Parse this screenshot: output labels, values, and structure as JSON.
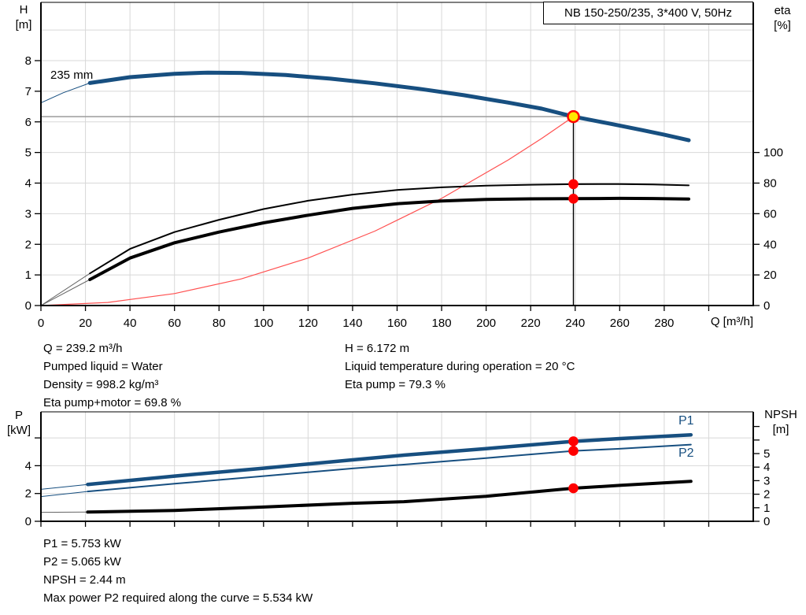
{
  "title_box": {
    "label": "NB 150-250/235, 3*400 V, 50Hz"
  },
  "colors": {
    "blue": "#174F80",
    "red": "#FF0000",
    "red_curve": "#FF5050",
    "yellow": "#FFE600",
    "black": "#000000",
    "gray_line": "#9B9B9B",
    "lead_gray": "#666666",
    "grid": "#D8D8D8"
  },
  "top_chart_labels": {
    "y_left": [
      "H",
      "[m]"
    ],
    "y_right": [
      "eta",
      "[%]"
    ],
    "x": "Q [m³/h]",
    "impeller": "235 mm"
  },
  "bottom_chart_labels": {
    "y_left": [
      "P",
      "[kW]"
    ],
    "y_right": [
      "NPSH",
      "[m]"
    ],
    "p1": "P1",
    "p2": "P2"
  },
  "info_top": {
    "left": [
      "Q = 239.2 m³/h",
      "Pumped liquid = Water",
      "Density = 998.2 kg/m³",
      "Eta pump+motor = 69.8 %"
    ],
    "right": [
      "H = 6.172 m",
      "Liquid temperature during operation = 20 °C",
      "Eta pump = 79.3 %"
    ]
  },
  "info_bottom": [
    "P1 = 5.753 kW",
    "P2 = 5.065 kW",
    "NPSH = 2.44 m",
    "Max power P2 required along the curve = 5.534 kW"
  ],
  "chart_data": [
    {
      "type": "line",
      "title": "NB 150-250/235, 3*400 V, 50Hz",
      "xlabel": "Q [m³/h]",
      "ylabel_left": "H [m]",
      "ylabel_right": "eta [%]",
      "xlim": [
        0,
        320
      ],
      "x_ticks": [
        0,
        20,
        40,
        60,
        80,
        100,
        120,
        140,
        160,
        180,
        200,
        220,
        240,
        260,
        280
      ],
      "y_left_ticks": [
        0,
        1,
        2,
        3,
        4,
        5,
        6,
        7,
        8
      ],
      "y_right_ticks": [
        0,
        20,
        40,
        60,
        80,
        100
      ],
      "grid": true,
      "duty_point": {
        "q": 239.2,
        "h": 6.172,
        "marker": "yellow",
        "drop_line": true,
        "level_line": true
      },
      "markers": [
        {
          "q": 239.2,
          "value": 79.3,
          "axis": "right"
        },
        {
          "q": 239.2,
          "value": 69.8,
          "axis": "right"
        }
      ],
      "series": [
        {
          "id": "system-curve",
          "name": "System curve",
          "color": "red_curve",
          "width": 1.2,
          "axis": "left",
          "points": [
            [
              0,
              0
            ],
            [
              30,
              0.1
            ],
            [
              60,
              0.39
            ],
            [
              90,
              0.87
            ],
            [
              120,
              1.55
            ],
            [
              150,
              2.43
            ],
            [
              180,
              3.5
            ],
            [
              210,
              4.76
            ],
            [
              225,
              5.46
            ],
            [
              239.2,
              6.172
            ]
          ]
        },
        {
          "id": "eta-pump",
          "name": "Eta pump",
          "color": "black",
          "width": 2,
          "axis": "right",
          "thin_until": 22,
          "lead_color": "lead_gray",
          "points": [
            [
              0,
              0
            ],
            [
              22,
              21
            ],
            [
              40,
              37
            ],
            [
              60,
              48
            ],
            [
              80,
              56
            ],
            [
              100,
              63
            ],
            [
              120,
              68.5
            ],
            [
              140,
              72.5
            ],
            [
              160,
              75.5
            ],
            [
              180,
              77.2
            ],
            [
              200,
              78.3
            ],
            [
              220,
              78.9
            ],
            [
              239.2,
              79.3
            ],
            [
              260,
              79.4
            ],
            [
              275,
              79.1
            ],
            [
              291,
              78.5
            ]
          ]
        },
        {
          "id": "eta-pump-motor",
          "name": "Eta pump+motor",
          "color": "black",
          "width": 4,
          "axis": "right",
          "thin_until": 22,
          "lead_color": "lead_gray",
          "points": [
            [
              0,
              0
            ],
            [
              22,
              17
            ],
            [
              40,
              31
            ],
            [
              60,
              41
            ],
            [
              80,
              48
            ],
            [
              100,
              54
            ],
            [
              120,
              59
            ],
            [
              140,
              63.5
            ],
            [
              160,
              66.5
            ],
            [
              180,
              68.3
            ],
            [
              200,
              69.3
            ],
            [
              220,
              69.7
            ],
            [
              239.2,
              69.8
            ],
            [
              260,
              70.0
            ],
            [
              275,
              69.9
            ],
            [
              291,
              69.6
            ]
          ]
        },
        {
          "id": "head-curve",
          "name": "235 mm",
          "color": "blue",
          "width": 5,
          "axis": "left",
          "thin_until": 22,
          "lead_color": "blue",
          "points": [
            [
              0,
              6.62
            ],
            [
              10,
              6.95
            ],
            [
              22,
              7.27
            ],
            [
              40,
              7.46
            ],
            [
              60,
              7.57
            ],
            [
              75,
              7.61
            ],
            [
              90,
              7.6
            ],
            [
              110,
              7.53
            ],
            [
              130,
              7.41
            ],
            [
              150,
              7.26
            ],
            [
              170,
              7.08
            ],
            [
              190,
              6.87
            ],
            [
              210,
              6.63
            ],
            [
              225,
              6.43
            ],
            [
              239.2,
              6.172
            ],
            [
              255,
              5.95
            ],
            [
              270,
              5.73
            ],
            [
              280,
              5.58
            ],
            [
              291,
              5.4
            ]
          ]
        }
      ]
    },
    {
      "type": "line",
      "title": "",
      "xlabel": "",
      "ylabel_left": "P [kW]",
      "ylabel_right": "NPSH [m]",
      "xlim": [
        0,
        320
      ],
      "x_ticks": [],
      "y_left_ticks": [
        0,
        2,
        4
      ],
      "y_right_ticks": [
        0,
        1,
        2,
        3,
        4,
        5
      ],
      "grid": true,
      "markers": [
        {
          "q": 239.2,
          "value": 5.753,
          "axis": "left"
        },
        {
          "q": 239.2,
          "value": 5.065,
          "axis": "left"
        },
        {
          "q": 239.2,
          "value": 2.44,
          "axis": "right"
        }
      ],
      "series": [
        {
          "id": "p1-curve",
          "name": "P1",
          "color": "blue",
          "width": 4.5,
          "axis": "left",
          "thin_until": 21,
          "lead_color": "blue",
          "points": [
            [
              0,
              2.3
            ],
            [
              21,
              2.65
            ],
            [
              60,
              3.25
            ],
            [
              100,
              3.82
            ],
            [
              140,
              4.42
            ],
            [
              163,
              4.76
            ],
            [
              200,
              5.23
            ],
            [
              239.2,
              5.753
            ],
            [
              260,
              5.95
            ],
            [
              292,
              6.22
            ]
          ]
        },
        {
          "id": "p2-curve",
          "name": "P2",
          "color": "blue",
          "width": 2,
          "axis": "left",
          "thin_until": 21,
          "lead_color": "blue",
          "points": [
            [
              0,
              1.78
            ],
            [
              21,
              2.15
            ],
            [
              60,
              2.7
            ],
            [
              100,
              3.25
            ],
            [
              140,
              3.8
            ],
            [
              163,
              4.08
            ],
            [
              200,
              4.55
            ],
            [
              239.2,
              5.065
            ],
            [
              260,
              5.22
            ],
            [
              292,
              5.52
            ]
          ]
        },
        {
          "id": "npsh-curve",
          "name": "NPSH",
          "color": "black",
          "width": 4,
          "axis": "right",
          "thin_until": 21,
          "lead_color": "lead_gray",
          "points": [
            [
              0,
              0.66
            ],
            [
              21,
              0.68
            ],
            [
              60,
              0.8
            ],
            [
              100,
              1.05
            ],
            [
              140,
              1.33
            ],
            [
              163,
              1.45
            ],
            [
              200,
              1.85
            ],
            [
              239.2,
              2.44
            ],
            [
              260,
              2.65
            ],
            [
              292,
              2.95
            ]
          ]
        }
      ]
    }
  ]
}
